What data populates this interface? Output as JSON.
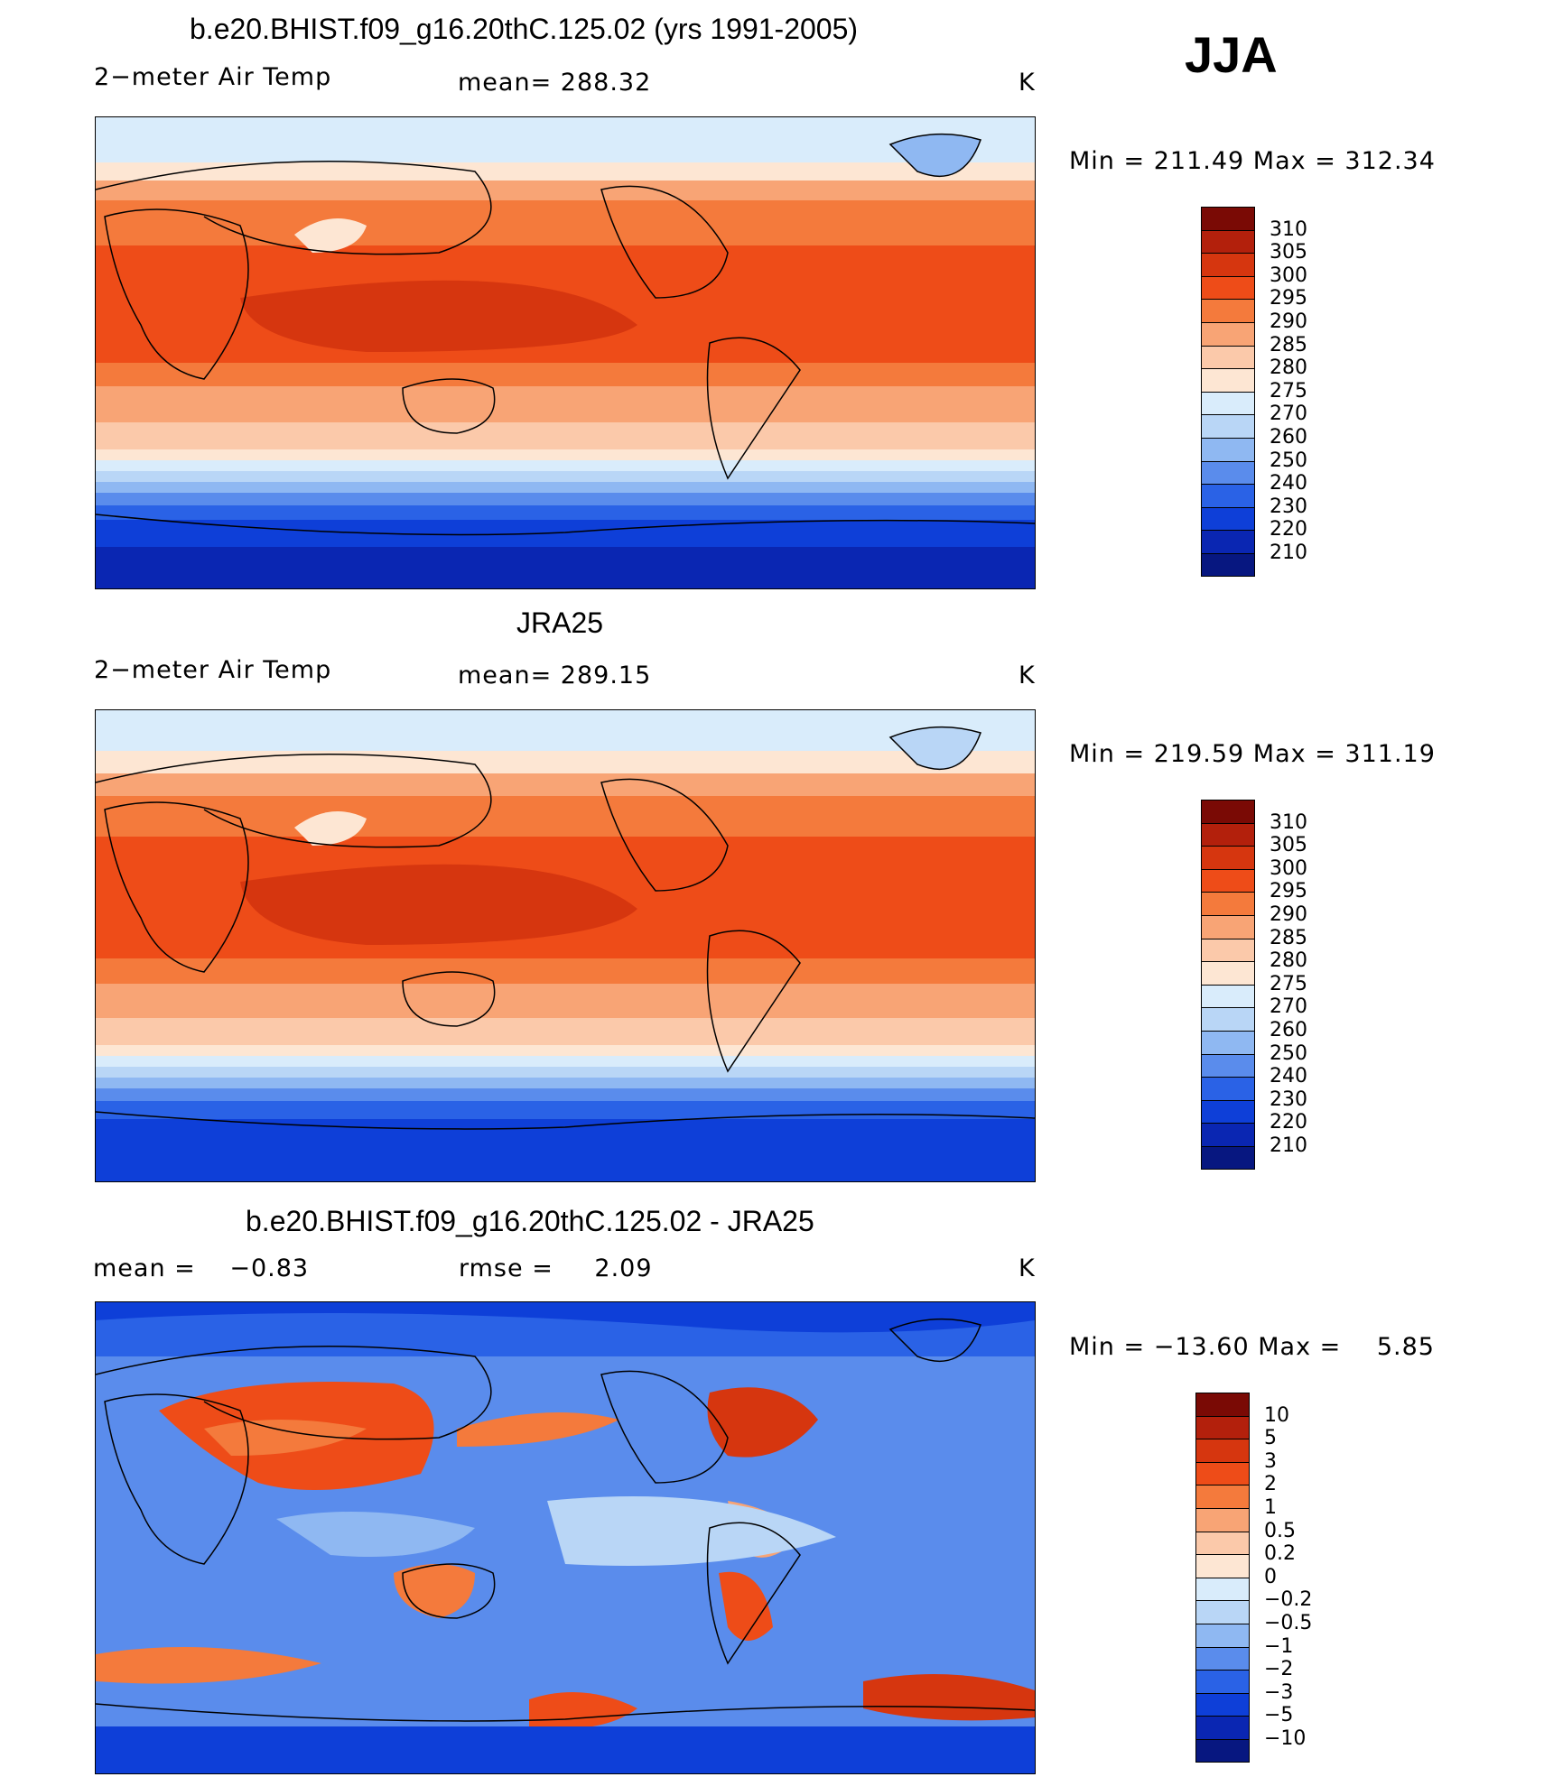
{
  "season": "JJA",
  "panels": [
    {
      "title": "b.e20.BHIST.f09_g16.20thC.125.02 (yrs 1991-2005)",
      "variable": "2−meter Air Temp",
      "mean_label": "mean=",
      "mean_value": "288.32",
      "units": "K",
      "min_label": "Min  =",
      "min_value": "211.49",
      "max_label": "Max  =",
      "max_value": "312.34"
    },
    {
      "title": "JRA25",
      "variable": "2−meter Air Temp",
      "mean_label": "mean=",
      "mean_value": "289.15",
      "units": "K",
      "min_label": "Min  =",
      "min_value": "219.59",
      "max_label": "Max  =",
      "max_value": "311.19"
    },
    {
      "title": "b.e20.BHIST.f09_g16.20thC.125.02 - JRA25",
      "mean_label": "mean =",
      "mean_value": "−0.83",
      "rmse_label": "rmse =",
      "rmse_value": "2.09",
      "units": "K",
      "min_label": "Min  =",
      "min_value": "−13.60",
      "max_label": "Max  =",
      "max_value": "5.85"
    }
  ],
  "colorbars": {
    "temp": {
      "labels": [
        "310",
        "305",
        "300",
        "295",
        "290",
        "285",
        "280",
        "275",
        "270",
        "260",
        "250",
        "240",
        "230",
        "220",
        "210"
      ],
      "colors": [
        "#7a0a05",
        "#b3200c",
        "#d6360f",
        "#ee4c18",
        "#f47a3c",
        "#f8a475",
        "#fbc9aa",
        "#fde6d3",
        "#d9ecfb",
        "#b9d6f6",
        "#8fb8f2",
        "#5a8cec",
        "#2a62e6",
        "#0e3fd8",
        "#0a26b2",
        "#071780"
      ]
    },
    "diff": {
      "labels": [
        "10",
        "5",
        "3",
        "2",
        "1",
        "0.5",
        "0.2",
        "0",
        "−0.2",
        "−0.5",
        "−1",
        "−2",
        "−3",
        "−5",
        "−10"
      ],
      "colors": [
        "#7a0a05",
        "#b3200c",
        "#d6360f",
        "#ee4c18",
        "#f47a3c",
        "#f8a475",
        "#fbc9aa",
        "#fde6d3",
        "#d9ecfb",
        "#b9d6f6",
        "#8fb8f2",
        "#5a8cec",
        "#2a62e6",
        "#0e3fd8",
        "#0a26b2",
        "#071780"
      ]
    }
  }
}
